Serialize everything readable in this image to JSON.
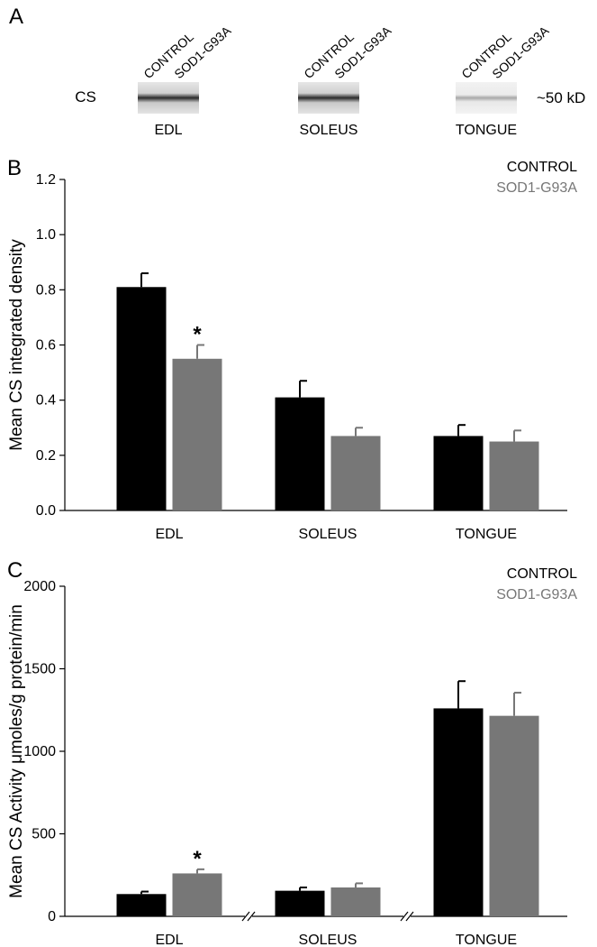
{
  "panel_a": {
    "label": "A",
    "row_label": "CS",
    "size_label": "~50 kD",
    "blots": [
      {
        "tissue": "EDL",
        "lanes": [
          "CONTROL",
          "SOD1-G93A"
        ]
      },
      {
        "tissue": "SOLEUS",
        "lanes": [
          "CONTROL",
          "SOD1-G93A"
        ]
      },
      {
        "tissue": "TONGUE",
        "lanes": [
          "CONTROL",
          "SOD1-G93A"
        ]
      }
    ]
  },
  "chart_data": [
    {
      "type": "bar",
      "panel": "B",
      "y_label": "Mean CS integrated density",
      "categories": [
        "EDL",
        "SOLEUS",
        "TONGUE"
      ],
      "series": [
        {
          "name": "CONTROL",
          "color": "#000000",
          "values": [
            0.81,
            0.41,
            0.27
          ],
          "errors": [
            0.05,
            0.06,
            0.04
          ]
        },
        {
          "name": "SOD1-G93A",
          "color": "#777777",
          "values": [
            0.55,
            0.27,
            0.25
          ],
          "errors": [
            0.05,
            0.03,
            0.04
          ]
        }
      ],
      "annotations": [
        {
          "text": "*",
          "category": "EDL",
          "series": "SOD1-G93A"
        }
      ],
      "ylim": [
        0,
        1.2
      ],
      "yticks": [
        {
          "value": 0,
          "label": "0.0"
        },
        0.2,
        0.4,
        0.6,
        0.8,
        {
          "value": 1,
          "label": "1.0"
        },
        1.2
      ],
      "legend": "top-right",
      "axis_breaks": false
    },
    {
      "type": "bar",
      "panel": "C",
      "y_label": "Mean CS Activity μmoles/g protein/min",
      "categories": [
        "EDL",
        "SOLEUS",
        "TONGUE"
      ],
      "series": [
        {
          "name": "CONTROL",
          "color": "#000000",
          "values": [
            135,
            155,
            1260
          ],
          "errors": [
            15,
            20,
            165
          ]
        },
        {
          "name": "SOD1-G93A",
          "color": "#777777",
          "values": [
            260,
            175,
            1215
          ],
          "errors": [
            25,
            25,
            140
          ]
        }
      ],
      "annotations": [
        {
          "text": "*",
          "category": "EDL",
          "series": "SOD1-G93A"
        }
      ],
      "ylim": [
        0,
        2000
      ],
      "yticks": [
        0,
        500,
        1000,
        1500,
        2000
      ],
      "legend": "top-right",
      "axis_breaks": true
    }
  ]
}
